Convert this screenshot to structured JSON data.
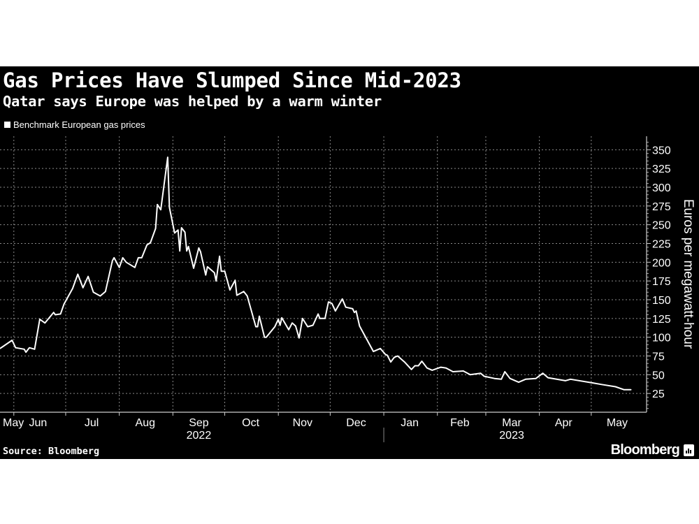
{
  "chart_data": {
    "type": "line",
    "title": "Gas Prices Have Slumped Since Mid-2023",
    "subtitle": "Qatar says Europe was helped by a warm winter",
    "ylabel": "Euros per megawatt-hour",
    "xlabel": "",
    "ylim": [
      0,
      368
    ],
    "xlim": [
      "2022-05-24",
      "2023-06-02"
    ],
    "y_axis_side": "right",
    "grid": true,
    "legend": "top-left",
    "y_ticks": [
      "25",
      "50",
      "75",
      "100",
      "125",
      "150",
      "175",
      "200",
      "225",
      "250",
      "275",
      "300",
      "325",
      "350"
    ],
    "x_month_labels": [
      {
        "label": "May",
        "date": "2022-05-24"
      },
      {
        "label": "Jun",
        "date": "2022-06-15"
      },
      {
        "label": "Jul",
        "date": "2022-07-16"
      },
      {
        "label": "Aug",
        "date": "2022-08-16"
      },
      {
        "label": "Sep",
        "date": "2022-09-16"
      },
      {
        "label": "Oct",
        "date": "2022-10-16"
      },
      {
        "label": "Nov",
        "date": "2022-11-15"
      },
      {
        "label": "Dec",
        "date": "2022-12-16"
      },
      {
        "label": "Jan",
        "date": "2023-01-16"
      },
      {
        "label": "Feb",
        "date": "2023-02-14"
      },
      {
        "label": "Mar",
        "date": "2023-03-16"
      },
      {
        "label": "Apr",
        "date": "2023-04-15"
      },
      {
        "label": "May",
        "date": "2023-05-16"
      }
    ],
    "x_year_labels": [
      {
        "label": "2022",
        "date": "2022-09-16"
      },
      {
        "label": "2023",
        "date": "2023-03-16"
      }
    ],
    "month_gridlines": [
      "2022-06-01",
      "2022-07-01",
      "2022-08-01",
      "2022-09-01",
      "2022-10-01",
      "2022-11-01",
      "2022-12-01",
      "2023-01-01",
      "2023-02-01",
      "2023-03-01",
      "2023-04-01",
      "2023-05-01"
    ],
    "year_separator": "2023-01-01",
    "series": [
      {
        "name": "Benchmark European gas prices",
        "color": "#ffffff",
        "points": [
          [
            "2022-05-24",
            85
          ],
          [
            "2022-05-26",
            88
          ],
          [
            "2022-05-31",
            96
          ],
          [
            "2022-06-02",
            86
          ],
          [
            "2022-06-07",
            84
          ],
          [
            "2022-06-08",
            80
          ],
          [
            "2022-06-10",
            86
          ],
          [
            "2022-06-13",
            84
          ],
          [
            "2022-06-16",
            124
          ],
          [
            "2022-06-19",
            119
          ],
          [
            "2022-06-24",
            133
          ],
          [
            "2022-06-25",
            130
          ],
          [
            "2022-06-28",
            131
          ],
          [
            "2022-06-30",
            144
          ],
          [
            "2022-07-05",
            165
          ],
          [
            "2022-07-08",
            184
          ],
          [
            "2022-07-11",
            166
          ],
          [
            "2022-07-14",
            181
          ],
          [
            "2022-07-17",
            160
          ],
          [
            "2022-07-21",
            155
          ],
          [
            "2022-07-24",
            161
          ],
          [
            "2022-07-28",
            202
          ],
          [
            "2022-07-29",
            206
          ],
          [
            "2022-08-01",
            193
          ],
          [
            "2022-08-03",
            206
          ],
          [
            "2022-08-05",
            200
          ],
          [
            "2022-08-10",
            193
          ],
          [
            "2022-08-12",
            206
          ],
          [
            "2022-08-14",
            206
          ],
          [
            "2022-08-17",
            223
          ],
          [
            "2022-08-19",
            226
          ],
          [
            "2022-08-22",
            245
          ],
          [
            "2022-08-23",
            277
          ],
          [
            "2022-08-25",
            270
          ],
          [
            "2022-08-29",
            340
          ],
          [
            "2022-08-30",
            273
          ],
          [
            "2022-09-02",
            239
          ],
          [
            "2022-09-04",
            243
          ],
          [
            "2022-09-05",
            215
          ],
          [
            "2022-09-06",
            246
          ],
          [
            "2022-09-08",
            240
          ],
          [
            "2022-09-09",
            215
          ],
          [
            "2022-09-10",
            221
          ],
          [
            "2022-09-13",
            192
          ],
          [
            "2022-09-16",
            219
          ],
          [
            "2022-09-17",
            214
          ],
          [
            "2022-09-20",
            183
          ],
          [
            "2022-09-21",
            194
          ],
          [
            "2022-09-25",
            186
          ],
          [
            "2022-09-26",
            175
          ],
          [
            "2022-09-28",
            208
          ],
          [
            "2022-09-29",
            188
          ],
          [
            "2022-10-01",
            188
          ],
          [
            "2022-10-04",
            163
          ],
          [
            "2022-10-07",
            176
          ],
          [
            "2022-10-08",
            156
          ],
          [
            "2022-10-12",
            161
          ],
          [
            "2022-10-14",
            155
          ],
          [
            "2022-10-19",
            114
          ],
          [
            "2022-10-20",
            114
          ],
          [
            "2022-10-21",
            128
          ],
          [
            "2022-10-24",
            100
          ],
          [
            "2022-10-25",
            100
          ],
          [
            "2022-10-30",
            114
          ],
          [
            "2022-11-01",
            124
          ],
          [
            "2022-11-02",
            116
          ],
          [
            "2022-11-03",
            126
          ],
          [
            "2022-11-07",
            110
          ],
          [
            "2022-11-09",
            119
          ],
          [
            "2022-11-11",
            115
          ],
          [
            "2022-11-13",
            99
          ],
          [
            "2022-11-15",
            125
          ],
          [
            "2022-11-18",
            114
          ],
          [
            "2022-11-21",
            116
          ],
          [
            "2022-11-24",
            131
          ],
          [
            "2022-11-25",
            125
          ],
          [
            "2022-11-28",
            125
          ],
          [
            "2022-11-30",
            147
          ],
          [
            "2022-12-02",
            145
          ],
          [
            "2022-12-04",
            135
          ],
          [
            "2022-12-08",
            151
          ],
          [
            "2022-12-10",
            140
          ],
          [
            "2022-12-14",
            138
          ],
          [
            "2022-12-15",
            133
          ],
          [
            "2022-12-16",
            135
          ],
          [
            "2022-12-18",
            115
          ],
          [
            "2022-12-21",
            102
          ],
          [
            "2022-12-26",
            81
          ],
          [
            "2022-12-30",
            85
          ],
          [
            "2023-01-02",
            77
          ],
          [
            "2023-01-03",
            76
          ],
          [
            "2023-01-05",
            67
          ],
          [
            "2023-01-07",
            73
          ],
          [
            "2023-01-09",
            75
          ],
          [
            "2023-01-13",
            67
          ],
          [
            "2023-01-17",
            57
          ],
          [
            "2023-01-19",
            62
          ],
          [
            "2023-01-21",
            62
          ],
          [
            "2023-01-23",
            68
          ],
          [
            "2023-01-26",
            59
          ],
          [
            "2023-01-29",
            56
          ],
          [
            "2023-02-03",
            60
          ],
          [
            "2023-02-06",
            59
          ],
          [
            "2023-02-10",
            54
          ],
          [
            "2023-02-16",
            55
          ],
          [
            "2023-02-20",
            50
          ],
          [
            "2023-02-26",
            52
          ],
          [
            "2023-02-28",
            48
          ],
          [
            "2023-03-06",
            45
          ],
          [
            "2023-03-10",
            44
          ],
          [
            "2023-03-12",
            54
          ],
          [
            "2023-03-15",
            45
          ],
          [
            "2023-03-20",
            40
          ],
          [
            "2023-03-24",
            44
          ],
          [
            "2023-03-30",
            45
          ],
          [
            "2023-04-03",
            52
          ],
          [
            "2023-04-06",
            46
          ],
          [
            "2023-04-16",
            42
          ],
          [
            "2023-04-19",
            44
          ],
          [
            "2023-05-02",
            39
          ],
          [
            "2023-05-07",
            37
          ],
          [
            "2023-05-15",
            34
          ],
          [
            "2023-05-20",
            30
          ],
          [
            "2023-05-24",
            30
          ]
        ]
      }
    ]
  },
  "source": "Source: Bloomberg",
  "brand": "Bloomberg"
}
